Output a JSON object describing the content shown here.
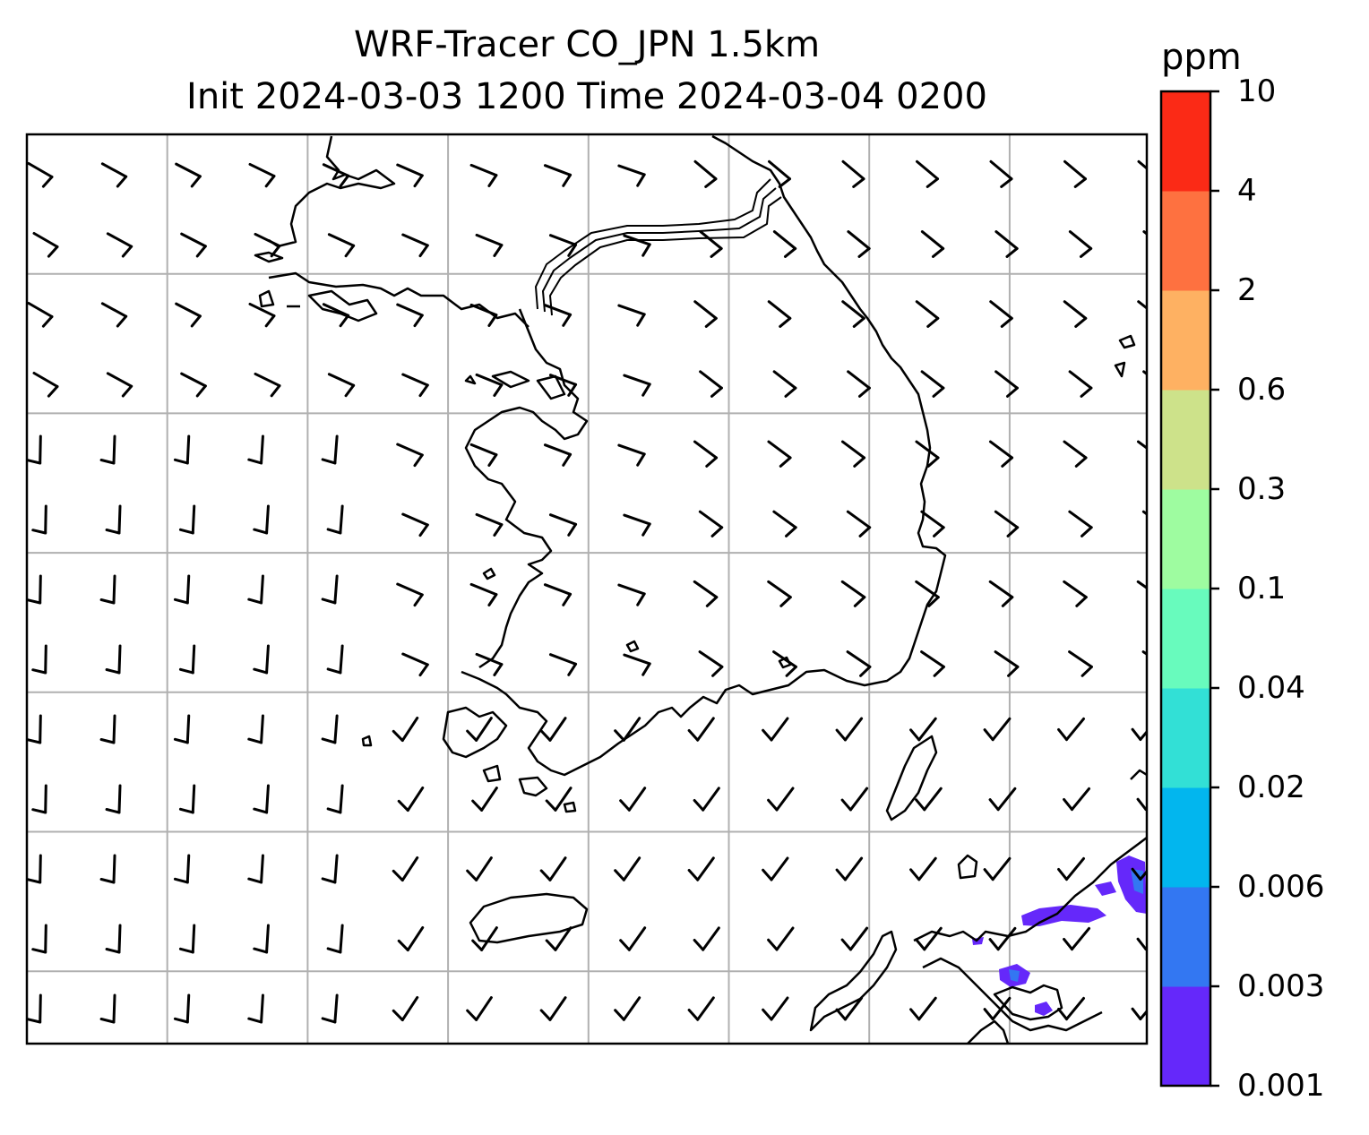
{
  "title_line1": "WRF-Tracer CO_JPN 1.5km",
  "title_line2": "Init 2024-03-03 1200 Time 2024-03-04 0200",
  "colorbar": {
    "unit": "ppm",
    "levels": [
      "0.001",
      "0.003",
      "0.006",
      "0.02",
      "0.04",
      "0.1",
      "0.3",
      "0.6",
      "2",
      "4",
      "10"
    ],
    "colors": [
      "#6528fa",
      "#3377f2",
      "#02b6ee",
      "#32e0d6",
      "#68fbbd",
      "#9efca0",
      "#cde28a",
      "#feb162",
      "#fe7140",
      "#fb2a16"
    ]
  },
  "chart_data": {
    "type": "heatmap",
    "variable": "CO tracer concentration",
    "unit": "ppm",
    "contour_levels": [
      0.001,
      0.003,
      0.006,
      0.02,
      0.04,
      0.1,
      0.3,
      0.6,
      2,
      4,
      10
    ],
    "grid": true,
    "grid_lines": {
      "vertical": 7,
      "horizontal": 6
    },
    "overlays": [
      "coastlines",
      "wind-barbs"
    ],
    "features": [
      {
        "region": "bottom-right (southern Japan coast)",
        "level_range": [
          0.001,
          0.003
        ]
      },
      {
        "region": "bottom-right (southern Japan coast)",
        "level_range": [
          0.003,
          0.006
        ]
      }
    ],
    "wind_barbs": {
      "west_and_south": "northerly / north-northwesterly",
      "center": "westerly / west-northwesterly",
      "northeast": "north-northwesterly"
    }
  }
}
